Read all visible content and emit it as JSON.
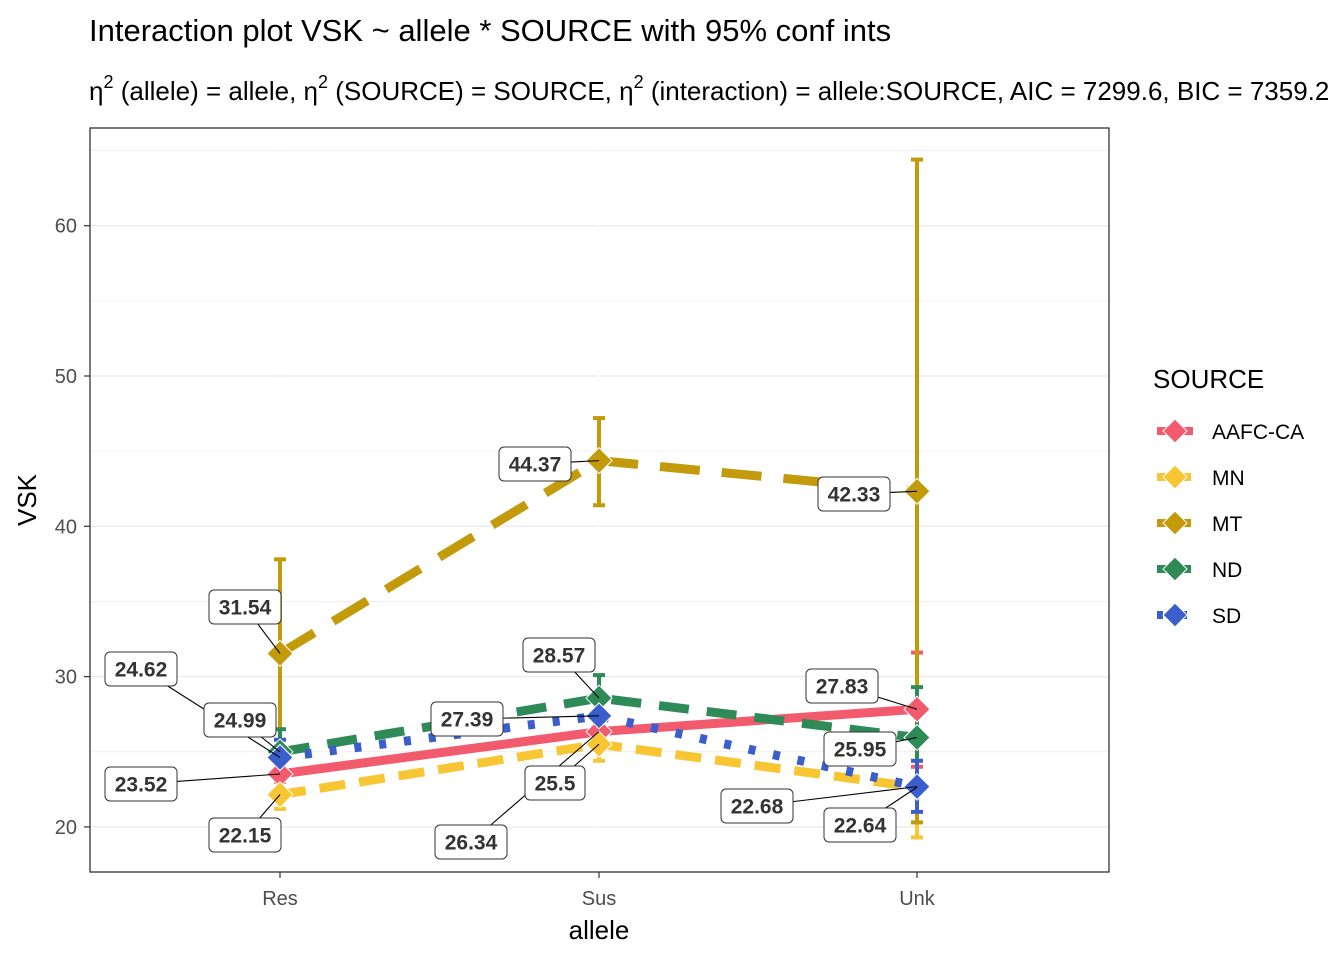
{
  "chart_data": {
    "type": "line",
    "title": "Interaction plot  VSK ~ allele * SOURCE with 95% conf ints",
    "subtitle": {
      "symbol": "η",
      "sup": "2",
      "part1": " (allele) = allele, ",
      "part2": " (SOURCE) = SOURCE, ",
      "part3": " (interaction) = allele:SOURCE, AIC = 7299.6, BIC = 7359.2"
    },
    "xlabel": "allele",
    "ylabel": "VSK",
    "categories": [
      "Res",
      "Sus",
      "Unk"
    ],
    "ylim": [
      17,
      66.5
    ],
    "yticks": [
      20,
      30,
      40,
      50,
      60
    ],
    "grid": true,
    "legend": {
      "title": "SOURCE",
      "position": "right"
    },
    "series": [
      {
        "name": "AAFC-CA",
        "color": "#F25A6E",
        "dash": "solid",
        "values": [
          23.52,
          26.34,
          27.83
        ],
        "ci": [
          [
            23.0,
            24.0
          ],
          [
            26.0,
            26.7
          ],
          [
            24.0,
            31.6
          ]
        ]
      },
      {
        "name": "MN",
        "color": "#F7C632",
        "dash": "dashed",
        "values": [
          22.15,
          25.5,
          22.64
        ],
        "ci": [
          [
            21.2,
            23.1
          ],
          [
            24.4,
            26.6
          ],
          [
            19.3,
            26.0
          ]
        ]
      },
      {
        "name": "MT",
        "color": "#C29A0A",
        "dash": "longdash",
        "values": [
          31.54,
          44.37,
          42.33
        ],
        "ci": [
          [
            25.2,
            37.8
          ],
          [
            41.4,
            47.2
          ],
          [
            20.3,
            64.4
          ]
        ]
      },
      {
        "name": "ND",
        "color": "#2E8B57",
        "dash": "dashed2",
        "values": [
          24.99,
          28.57,
          25.95
        ],
        "ci": [
          [
            23.4,
            26.5
          ],
          [
            27.0,
            30.1
          ],
          [
            22.5,
            29.3
          ]
        ]
      },
      {
        "name": "SD",
        "color": "#3A5FCD",
        "dash": "dotted",
        "values": [
          24.62,
          27.39,
          22.68
        ],
        "ci": [
          [
            23.5,
            25.8
          ],
          [
            26.3,
            28.4
          ],
          [
            21.0,
            24.4
          ]
        ]
      }
    ],
    "annotations": [
      {
        "series": "AAFC-CA",
        "cat": "Res",
        "text": "23.52"
      },
      {
        "series": "AAFC-CA",
        "cat": "Sus",
        "text": "26.34"
      },
      {
        "series": "AAFC-CA",
        "cat": "Unk",
        "text": "27.83"
      },
      {
        "series": "MN",
        "cat": "Res",
        "text": "22.15"
      },
      {
        "series": "MN",
        "cat": "Sus",
        "text": "25.5"
      },
      {
        "series": "MN",
        "cat": "Unk",
        "text": "22.64"
      },
      {
        "series": "MT",
        "cat": "Res",
        "text": "31.54"
      },
      {
        "series": "MT",
        "cat": "Sus",
        "text": "44.37"
      },
      {
        "series": "MT",
        "cat": "Unk",
        "text": "42.33"
      },
      {
        "series": "ND",
        "cat": "Res",
        "text": "24.99"
      },
      {
        "series": "ND",
        "cat": "Sus",
        "text": "28.57"
      },
      {
        "series": "ND",
        "cat": "Unk",
        "text": "25.95"
      },
      {
        "series": "SD",
        "cat": "Res",
        "text": "24.62"
      },
      {
        "series": "SD",
        "cat": "Sus",
        "text": "27.39"
      },
      {
        "series": "SD",
        "cat": "Unk",
        "text": "22.68"
      }
    ]
  }
}
